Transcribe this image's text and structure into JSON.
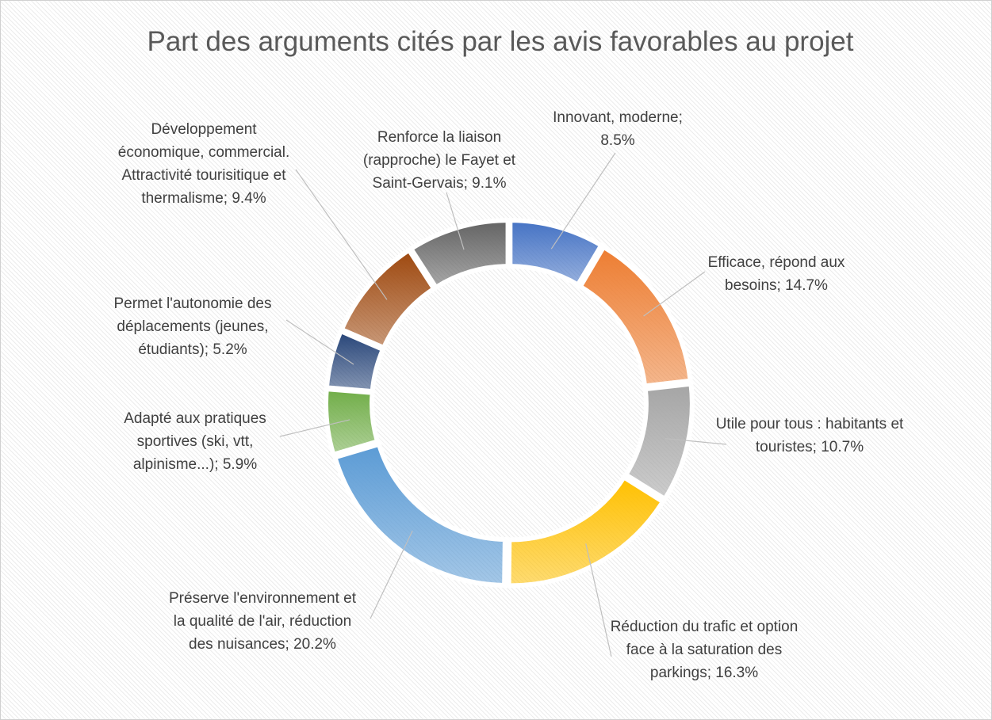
{
  "chart_data": {
    "type": "donut",
    "title": "Part des arguments cités par les avis favorables au projet",
    "values": [
      8.5,
      14.7,
      10.7,
      16.3,
      20.2,
      5.9,
      5.2,
      9.4,
      9.1
    ],
    "value_labels": [
      "Innovant, moderne; 8.5%",
      "Efficace, répond aux besoins; 14.7%",
      "Utile pour tous : habitants et touristes; 10.7%",
      "Réduction du trafic et option face à la saturation des parkings; 16.3%",
      "Préserve l'environnement et la qualité de l'air, réduction des nuisances; 20.2%",
      "Adapté aux pratiques sportives (ski, vtt, alpinisme...); 5.9%",
      "Permet l'autonomie des déplacements (jeunes, étudiants); 5.2%",
      "Développement économique, commercial. Attractivité tourisitique et thermalisme; 9.4%",
      "Renforce la liaison (rapproche) le Fayet et Saint-Gervais; 9.1%"
    ],
    "colors": [
      "#4472c4",
      "#ed7d31",
      "#a5a5a5",
      "#ffc000",
      "#5b9bd5",
      "#70ad47",
      "#264478",
      "#9e480e",
      "#636363"
    ]
  }
}
